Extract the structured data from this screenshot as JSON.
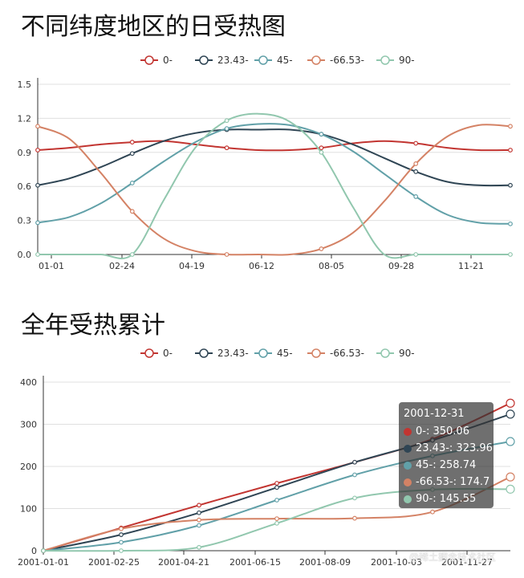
{
  "watermark": "@稀土掘金技术社区",
  "chart_data": [
    {
      "type": "line",
      "title": "不同纬度地区的日受热图",
      "x_ticks": [
        "01-01",
        "02-24",
        "04-19",
        "06-12",
        "08-05",
        "09-28",
        "11-21"
      ],
      "ylim": [
        0,
        1.5
      ],
      "y_ticks": [
        0,
        0.3,
        0.6,
        0.9,
        1.2,
        1.5
      ],
      "grid": true,
      "legend_position": "top-center",
      "series": [
        {
          "name": "0-",
          "color": "#c23531",
          "values": [
            0.92,
            0.94,
            0.97,
            0.99,
            1.0,
            0.97,
            0.94,
            0.92,
            0.92,
            0.94,
            0.98,
            1.0,
            0.98,
            0.94,
            0.92,
            0.92
          ]
        },
        {
          "name": "23.43-",
          "color": "#2f4554",
          "values": [
            0.61,
            0.67,
            0.77,
            0.89,
            1.0,
            1.07,
            1.1,
            1.1,
            1.1,
            1.06,
            0.97,
            0.85,
            0.73,
            0.64,
            0.61,
            0.61
          ]
        },
        {
          "name": "45-",
          "color": "#61a0a8",
          "values": [
            0.28,
            0.33,
            0.45,
            0.63,
            0.82,
            0.99,
            1.11,
            1.15,
            1.14,
            1.06,
            0.91,
            0.71,
            0.51,
            0.35,
            0.28,
            0.27
          ]
        },
        {
          "name": "-66.53-",
          "color": "#d48265",
          "values": [
            1.13,
            1.02,
            0.72,
            0.38,
            0.14,
            0.03,
            0.0,
            0.0,
            0.0,
            0.05,
            0.19,
            0.47,
            0.8,
            1.04,
            1.14,
            1.13
          ]
        },
        {
          "name": "90-",
          "color": "#91c7ae",
          "values": [
            0.0,
            0.0,
            0.0,
            0.0,
            0.48,
            0.94,
            1.18,
            1.24,
            1.17,
            0.9,
            0.42,
            0.0,
            0.0,
            0.0,
            0.0,
            0.0
          ]
        }
      ]
    },
    {
      "type": "line",
      "title": "全年受热累计",
      "x_ticks": [
        "2001-01-01",
        "2001-02-25",
        "2001-04-21",
        "2001-06-15",
        "2001-08-09",
        "2001-10-03",
        "2001-11-27"
      ],
      "ylim": [
        0,
        400
      ],
      "y_ticks": [
        0,
        100,
        200,
        300,
        400
      ],
      "grid": true,
      "legend_position": "top-center",
      "series": [
        {
          "name": "0-",
          "color": "#c23531",
          "values": [
            0,
            54,
            108,
            160,
            210,
            265,
            350
          ]
        },
        {
          "name": "23.43-",
          "color": "#2f4554",
          "values": [
            0,
            38,
            90,
            150,
            210,
            262,
            324
          ]
        },
        {
          "name": "45-",
          "color": "#61a0a8",
          "values": [
            0,
            20,
            60,
            120,
            180,
            225,
            259
          ]
        },
        {
          "name": "-66.53-",
          "color": "#d48265",
          "values": [
            0,
            52,
            73,
            76,
            77,
            92,
            175
          ]
        },
        {
          "name": "90-",
          "color": "#91c7ae",
          "values": [
            0,
            0,
            8,
            65,
            125,
            145,
            146
          ]
        }
      ],
      "tooltip": {
        "title": "2001-12-31",
        "rows": [
          {
            "label": "0-: 350.06",
            "color": "#c23531"
          },
          {
            "label": "23.43-: 323.96",
            "color": "#2f4554"
          },
          {
            "label": "45-: 258.74",
            "color": "#61a0a8"
          },
          {
            "label": "-66.53-: 174.7",
            "color": "#d48265"
          },
          {
            "label": "90-: 145.55",
            "color": "#91c7ae"
          }
        ]
      }
    }
  ]
}
